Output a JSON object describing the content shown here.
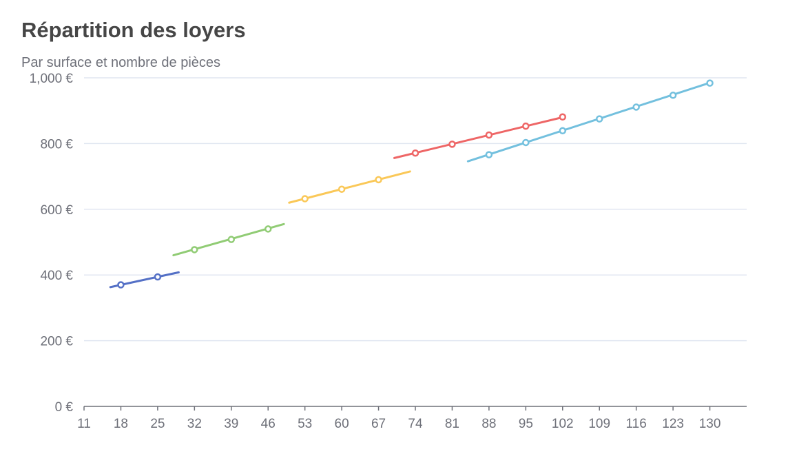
{
  "chart_data": {
    "type": "line",
    "title": "Répartition des loyers",
    "subtitle": "Par surface et nombre de pièces",
    "xlabel": "",
    "ylabel": "",
    "x_ticks": [
      11,
      18,
      25,
      32,
      39,
      46,
      53,
      60,
      67,
      74,
      81,
      88,
      95,
      102,
      109,
      116,
      123,
      130
    ],
    "xlim": [
      11,
      137
    ],
    "ylim": [
      0,
      1000
    ],
    "y_ticks": [
      0,
      200,
      400,
      600,
      800,
      1000
    ],
    "y_tick_labels": [
      "0 €",
      "200 €",
      "400 €",
      "600 €",
      "800 €",
      "1,000 €"
    ],
    "grid": "horizontal",
    "legend": "none",
    "series": [
      {
        "color": "#5470c6",
        "line": [
          [
            16,
            363
          ],
          [
            29,
            408
          ]
        ],
        "points": [
          [
            18,
            370
          ],
          [
            25,
            394
          ]
        ]
      },
      {
        "color": "#91cc75",
        "line": [
          [
            28,
            460
          ],
          [
            49,
            555
          ]
        ],
        "points": [
          [
            32,
            477
          ],
          [
            39,
            508
          ],
          [
            46,
            540
          ]
        ]
      },
      {
        "color": "#fac858",
        "line": [
          [
            50,
            620
          ],
          [
            73,
            715
          ]
        ],
        "points": [
          [
            53,
            632
          ],
          [
            60,
            661
          ],
          [
            67,
            690
          ]
        ]
      },
      {
        "color": "#ee6666",
        "line": [
          [
            70,
            756
          ],
          [
            102,
            880
          ]
        ],
        "points": [
          [
            74,
            771
          ],
          [
            81,
            798
          ],
          [
            88,
            826
          ],
          [
            95,
            853
          ],
          [
            102,
            881
          ]
        ]
      },
      {
        "color": "#73c0de",
        "line": [
          [
            84,
            746
          ],
          [
            130,
            985
          ]
        ],
        "points": [
          [
            88,
            766
          ],
          [
            95,
            803
          ],
          [
            102,
            839
          ],
          [
            109,
            875
          ],
          [
            116,
            911
          ],
          [
            123,
            947
          ],
          [
            130,
            984
          ]
        ]
      }
    ]
  }
}
